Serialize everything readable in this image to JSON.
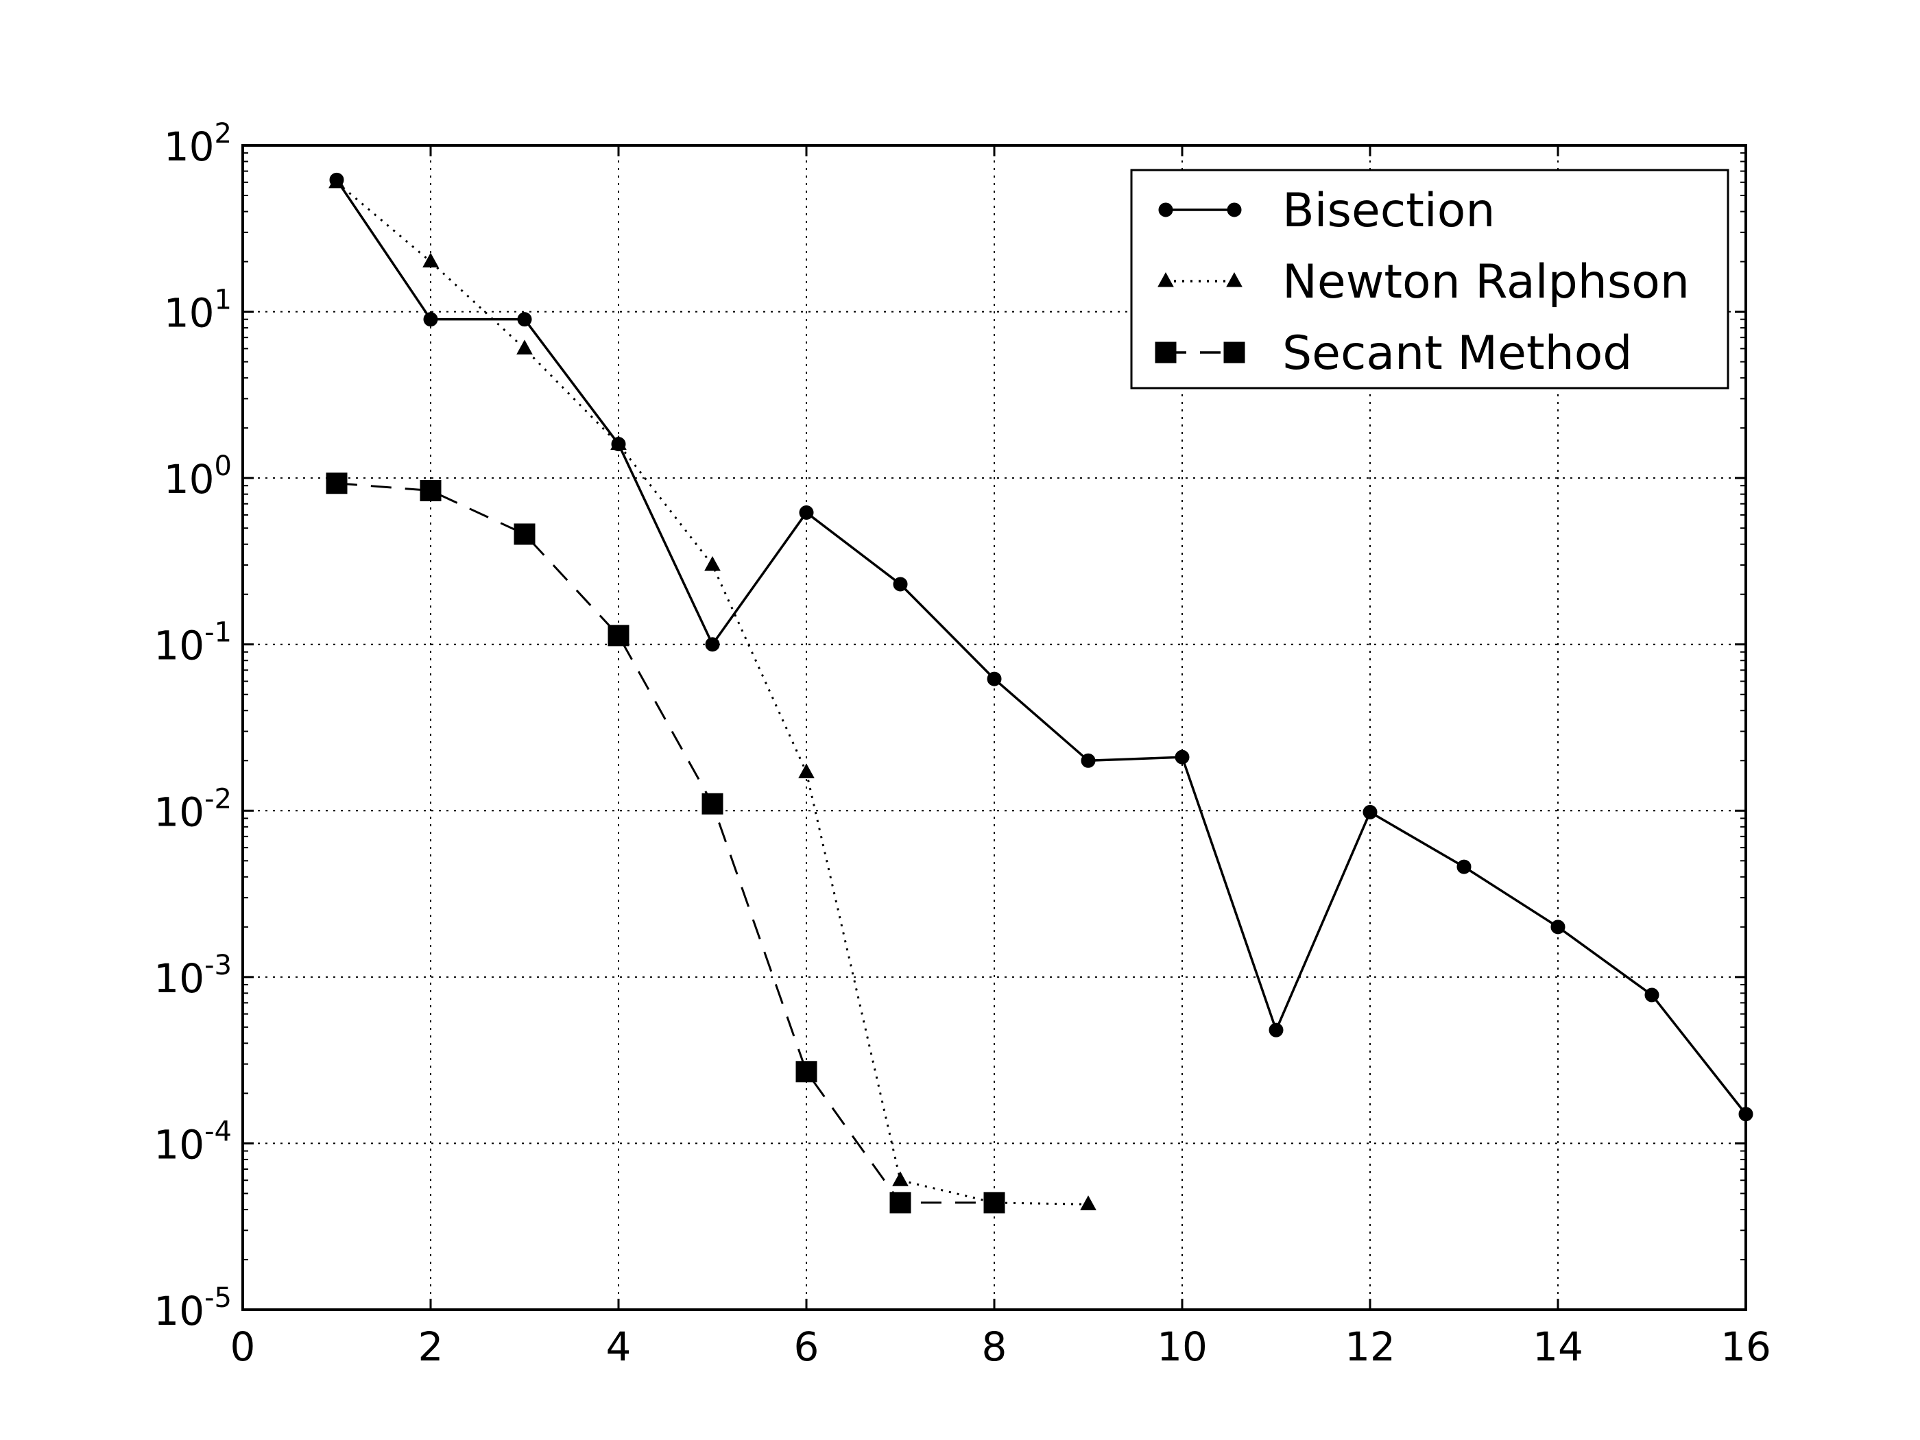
{
  "chart_data": {
    "type": "line",
    "title": "",
    "xlabel": "",
    "ylabel": "",
    "xlim": [
      0,
      16
    ],
    "ylim": [
      1e-05,
      100
    ],
    "yscale": "log",
    "grid": true,
    "legend_position": "top-right",
    "x_ticks": [
      0,
      2,
      4,
      6,
      8,
      10,
      12,
      14,
      16
    ],
    "x_tick_labels": [
      "0",
      "2",
      "4",
      "6",
      "8",
      "10",
      "12",
      "14",
      "16"
    ],
    "y_ticks": [
      {
        "value": 100,
        "base": "10",
        "exp": "2"
      },
      {
        "value": 10,
        "base": "10",
        "exp": "1"
      },
      {
        "value": 1,
        "base": "10",
        "exp": "0"
      },
      {
        "value": 0.1,
        "base": "10",
        "exp": "-1"
      },
      {
        "value": 0.01,
        "base": "10",
        "exp": "-2"
      },
      {
        "value": 0.001,
        "base": "10",
        "exp": "-3"
      },
      {
        "value": 0.0001,
        "base": "10",
        "exp": "-4"
      },
      {
        "value": 1e-05,
        "base": "10",
        "exp": "-5"
      }
    ],
    "series": [
      {
        "name": "Bisection",
        "line_style": "solid",
        "marker": "circle",
        "color": "#000000",
        "x": [
          1,
          2,
          3,
          4,
          5,
          6,
          7,
          8,
          9,
          10,
          11,
          12,
          13,
          14,
          15,
          16
        ],
        "values": [
          62,
          9,
          9,
          1.6,
          0.1,
          0.62,
          0.23,
          0.062,
          0.02,
          0.021,
          0.00048,
          0.0098,
          0.0046,
          0.002,
          0.00078,
          0.00015
        ]
      },
      {
        "name": "Newton Ralphson",
        "line_style": "dotted",
        "marker": "triangle",
        "color": "#000000",
        "x": [
          1,
          2,
          3,
          4,
          5,
          6,
          7,
          8,
          9
        ],
        "values": [
          60,
          20,
          6,
          1.6,
          0.3,
          0.017,
          6e-05,
          4.4e-05,
          4.3e-05
        ]
      },
      {
        "name": "Secant Method",
        "line_style": "dashed",
        "marker": "square",
        "color": "#000000",
        "x": [
          1,
          2,
          3,
          4,
          5,
          6,
          7,
          8
        ],
        "values": [
          0.93,
          0.84,
          0.46,
          0.113,
          0.011,
          0.00027,
          4.4e-05,
          4.4e-05
        ]
      }
    ]
  }
}
